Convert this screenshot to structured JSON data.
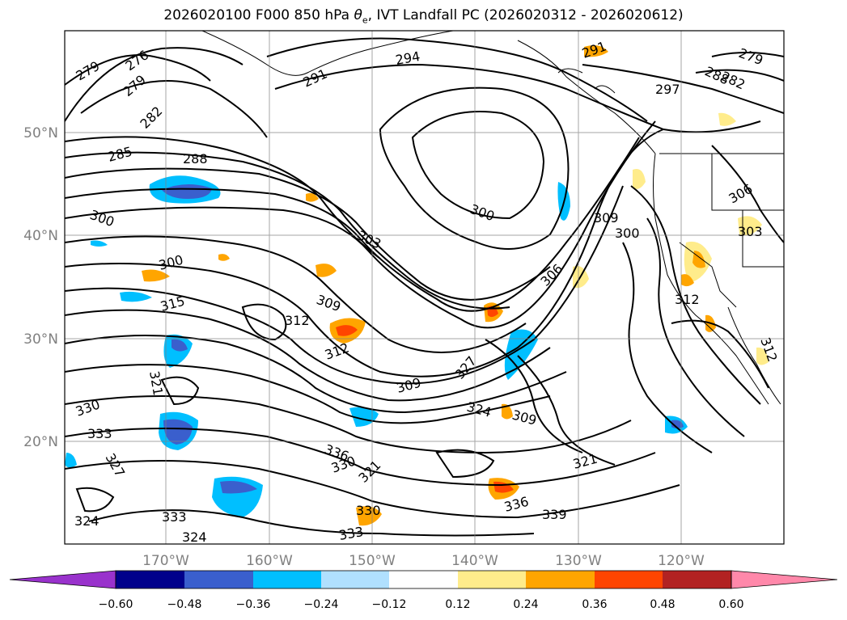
{
  "title": {
    "prefix": "2026020100 F000 850 hPa ",
    "theta": "θ",
    "theta_sub": "e",
    "suffix": ", IVT Landfall PC (2026020312 - 2026020612)"
  },
  "map": {
    "lon_ticks": [
      "170°W",
      "160°W",
      "150°W",
      "140°W",
      "130°W",
      "120°W"
    ],
    "lat_ticks": [
      "50°N",
      "40°N",
      "30°N",
      "20°N"
    ],
    "grid": true,
    "contour_labels": [
      "279",
      "276",
      "279",
      "282",
      "285",
      "288",
      "291",
      "294",
      "291",
      "297",
      "279",
      "288",
      "282",
      "300",
      "303",
      "300",
      "300",
      "306",
      "309",
      "300",
      "303",
      "315",
      "312",
      "309",
      "312",
      "306",
      "312",
      "309",
      "324",
      "321",
      "327",
      "330",
      "333",
      "324",
      "330",
      "336",
      "330",
      "333",
      "321",
      "309",
      "336",
      "339",
      "333",
      "312",
      "327",
      "324",
      "321"
    ]
  },
  "colorbar": {
    "ticks": [
      "−0.60",
      "−0.48",
      "−0.36",
      "−0.24",
      "−0.12",
      "0.12",
      "0.24",
      "0.36",
      "0.48",
      "0.60"
    ],
    "colors": [
      "#9932CC",
      "#00008B",
      "#3A5FCD",
      "#00BFFF",
      "#B0E0FF",
      "#FFFFFF",
      "#FFEC8B",
      "#FFA500",
      "#FF4500",
      "#B22222",
      "#FF88AA"
    ]
  }
}
